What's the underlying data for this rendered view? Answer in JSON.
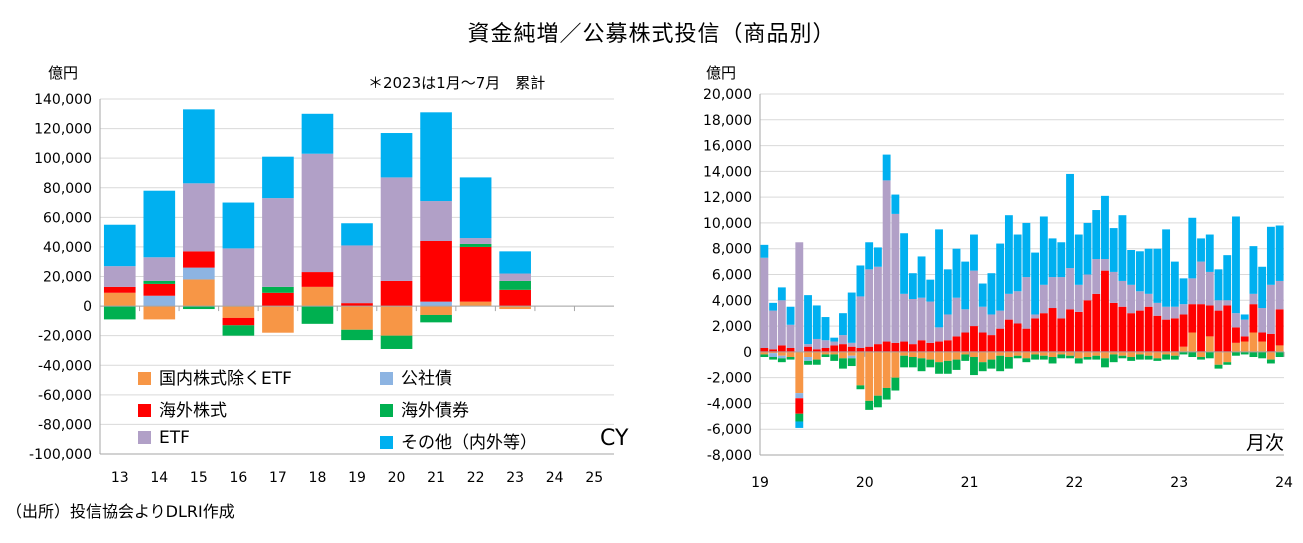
{
  "title": "資金純増／公募株式投信（商品別）",
  "source": "（出所）投信協会よりDLRI作成",
  "colors": {
    "domestic": "#f79646",
    "corpbond": "#8db4e2",
    "foreign": "#ff0000",
    "foreignbond": "#00b050",
    "etf": "#b1a0c7",
    "other": "#00b0f0",
    "grid": "#d9d9d9"
  },
  "left_chart": {
    "unit": "億円",
    "note": "＊2023は1月～7月　累計",
    "period_label": "CY"
  },
  "right_chart": {
    "unit": "億円",
    "period_label": "月次"
  },
  "legend": [
    {
      "key": "domestic",
      "label": "国内株式除くETF"
    },
    {
      "key": "corpbond",
      "label": "公社債"
    },
    {
      "key": "foreign",
      "label": "海外株式"
    },
    {
      "key": "foreignbond",
      "label": "海外債券"
    },
    {
      "key": "etf",
      "label": "ETF"
    },
    {
      "key": "other",
      "label": "その他（内外等）"
    }
  ],
  "chart_data": [
    {
      "type": "bar",
      "stacked": true,
      "title": "資金純増／公募株式投信（商品別）",
      "ylabel": "億円",
      "xlabel": "CY",
      "ylim": [
        -100000,
        140000
      ],
      "yticks": [
        140000,
        120000,
        100000,
        80000,
        60000,
        40000,
        20000,
        0,
        -20000,
        -40000,
        -60000,
        -80000,
        -100000
      ],
      "ytick_labels": [
        "140,000",
        "120,000",
        "100,000",
        "80,000",
        "60,000",
        "40,000",
        "20,000",
        "0",
        "-20,000",
        "-40,000",
        "-60,000",
        "-80,000",
        "-100,000"
      ],
      "categories": [
        "13",
        "14",
        "15",
        "16",
        "17",
        "18",
        "19",
        "20",
        "21",
        "22",
        "23",
        "24",
        "25"
      ],
      "series": [
        {
          "key": "domestic",
          "name": "国内株式除くETF",
          "values": [
            9000,
            -9000,
            18000,
            -8000,
            -18000,
            13000,
            -16000,
            -20000,
            -6000,
            3000,
            -2000,
            0,
            0
          ]
        },
        {
          "key": "corpbond",
          "name": "公社債",
          "values": [
            0,
            7000,
            8000,
            0,
            0,
            0,
            0,
            0,
            3000,
            0,
            0,
            0,
            0
          ]
        },
        {
          "key": "foreign",
          "name": "海外株式",
          "values": [
            4000,
            8000,
            11000,
            -5000,
            9000,
            10000,
            2000,
            17000,
            41000,
            37000,
            11000,
            0,
            0
          ]
        },
        {
          "key": "foreignbond",
          "name": "海外債券",
          "values": [
            -9000,
            2000,
            -2000,
            -7000,
            4000,
            -12000,
            -7000,
            -9000,
            -5000,
            2000,
            6000,
            0,
            0
          ]
        },
        {
          "key": "etf",
          "name": "ETF",
          "values": [
            14000,
            16000,
            46000,
            39000,
            60000,
            80000,
            39000,
            70000,
            27000,
            4000,
            5000,
            0,
            0
          ]
        },
        {
          "key": "other",
          "name": "その他（内外等）",
          "values": [
            28000,
            45000,
            50000,
            31000,
            28000,
            27000,
            15000,
            30000,
            60000,
            41000,
            15000,
            0,
            0
          ]
        }
      ]
    },
    {
      "type": "bar",
      "stacked": true,
      "ylabel": "億円",
      "xlabel": "月次",
      "ylim": [
        -8000,
        20000
      ],
      "yticks": [
        20000,
        18000,
        16000,
        14000,
        12000,
        10000,
        8000,
        6000,
        4000,
        2000,
        0,
        -2000,
        -4000,
        -6000,
        -8000
      ],
      "ytick_labels": [
        "20,000",
        "18,000",
        "16,000",
        "14,000",
        "12,000",
        "10,000",
        "8,000",
        "6,000",
        "4,000",
        "2,000",
        "0",
        "-2,000",
        "-4,000",
        "-6,000",
        "-8,000"
      ],
      "x_year_labels": [
        "19",
        "20",
        "21",
        "22",
        "23",
        "24"
      ],
      "x_start": "2019-01",
      "months": 60,
      "series": [
        {
          "key": "domestic",
          "name": "国内株式除くETF",
          "values": [
            -200,
            -100,
            -300,
            -400,
            -3200,
            -400,
            -600,
            -200,
            -200,
            -500,
            -300,
            -2600,
            -3800,
            -3400,
            -2800,
            -2000,
            -300,
            -400,
            -500,
            -600,
            -800,
            -700,
            -600,
            -200,
            -400,
            -800,
            -600,
            -300,
            -400,
            -300,
            -500,
            -200,
            -300,
            -400,
            -200,
            -300,
            -500,
            -400,
            -300,
            -500,
            -200,
            -300,
            -400,
            -200,
            -300,
            -500,
            -200,
            -300,
            400,
            1500,
            -400,
            1200,
            -1000,
            -800,
            700,
            800,
            1500,
            800,
            -600,
            500
          ]
        },
        {
          "key": "corpbond",
          "name": "公社債",
          "values": [
            0,
            -300,
            -200,
            0,
            -400,
            -300,
            0,
            0,
            0,
            0,
            -200,
            0,
            0,
            0,
            0,
            0,
            0,
            0,
            0,
            0,
            0,
            0,
            0,
            0,
            0,
            0,
            0,
            0,
            0,
            0,
            0,
            0,
            0,
            0,
            0,
            0,
            0,
            0,
            0,
            0,
            0,
            0,
            0,
            0,
            0,
            0,
            0,
            0,
            0,
            0,
            0,
            0,
            0,
            0,
            0,
            0,
            0,
            0,
            0,
            0
          ]
        },
        {
          "key": "foreign",
          "name": "海外株式",
          "values": [
            300,
            200,
            500,
            300,
            -1200,
            400,
            200,
            300,
            500,
            600,
            400,
            300,
            400,
            600,
            800,
            700,
            800,
            600,
            900,
            700,
            800,
            900,
            1200,
            1500,
            2000,
            1500,
            1300,
            1800,
            2500,
            2200,
            1800,
            2600,
            3000,
            3400,
            2600,
            3300,
            3100,
            4000,
            4500,
            6300,
            3800,
            3500,
            3000,
            3200,
            3500,
            2800,
            2500,
            2600,
            2500,
            2200,
            3700,
            2400,
            3200,
            3600,
            1200,
            400,
            2200,
            700,
            1400,
            2800
          ]
        },
        {
          "key": "foreignbond",
          "name": "海外債券",
          "values": [
            -200,
            -200,
            -300,
            -200,
            -600,
            -300,
            -400,
            -200,
            -500,
            -800,
            -600,
            -300,
            -700,
            -900,
            -900,
            -1000,
            -900,
            -800,
            -1000,
            -600,
            -900,
            -1000,
            -800,
            -500,
            -1400,
            -700,
            -700,
            -1200,
            -900,
            -200,
            -300,
            -400,
            -300,
            -500,
            -300,
            -200,
            -400,
            -200,
            -300,
            -700,
            -600,
            -200,
            -300,
            -400,
            -300,
            -200,
            -400,
            -300,
            -200,
            -400,
            -200,
            -500,
            -300,
            -200,
            -300,
            -200,
            -400,
            -500,
            -300,
            -400
          ]
        },
        {
          "key": "etf",
          "name": "ETF",
          "values": [
            7000,
            3000,
            3500,
            1800,
            8500,
            200,
            800,
            600,
            300,
            700,
            300,
            4000,
            6000,
            6000,
            12500,
            10000,
            3700,
            3500,
            3300,
            3200,
            1100,
            2000,
            3000,
            1800,
            4300,
            2000,
            1600,
            1400,
            2000,
            2500,
            4000,
            300,
            2200,
            2400,
            3200,
            3200,
            2100,
            2000,
            2700,
            900,
            2400,
            2000,
            2200,
            1500,
            1000,
            1000,
            1000,
            900,
            800,
            2000,
            3300,
            2600,
            800,
            400,
            1100,
            1300,
            800,
            1900,
            3800,
            2200
          ]
        },
        {
          "key": "other",
          "name": "その他（内外等）",
          "values": [
            1000,
            600,
            1000,
            1400,
            -500,
            3800,
            2600,
            1800,
            300,
            1700,
            3900,
            2400,
            2100,
            1500,
            2000,
            1500,
            4700,
            2000,
            3200,
            1700,
            7600,
            3500,
            3800,
            3700,
            2800,
            1800,
            3200,
            5200,
            6100,
            4400,
            4200,
            4800,
            5300,
            3000,
            2700,
            7300,
            3900,
            4000,
            3800,
            4900,
            3400,
            5100,
            2700,
            3100,
            3500,
            4200,
            6000,
            3500,
            2000,
            4700,
            1800,
            2900,
            2400,
            3500,
            7500,
            400,
            3700,
            3200,
            4500,
            4300
          ]
        }
      ]
    }
  ]
}
